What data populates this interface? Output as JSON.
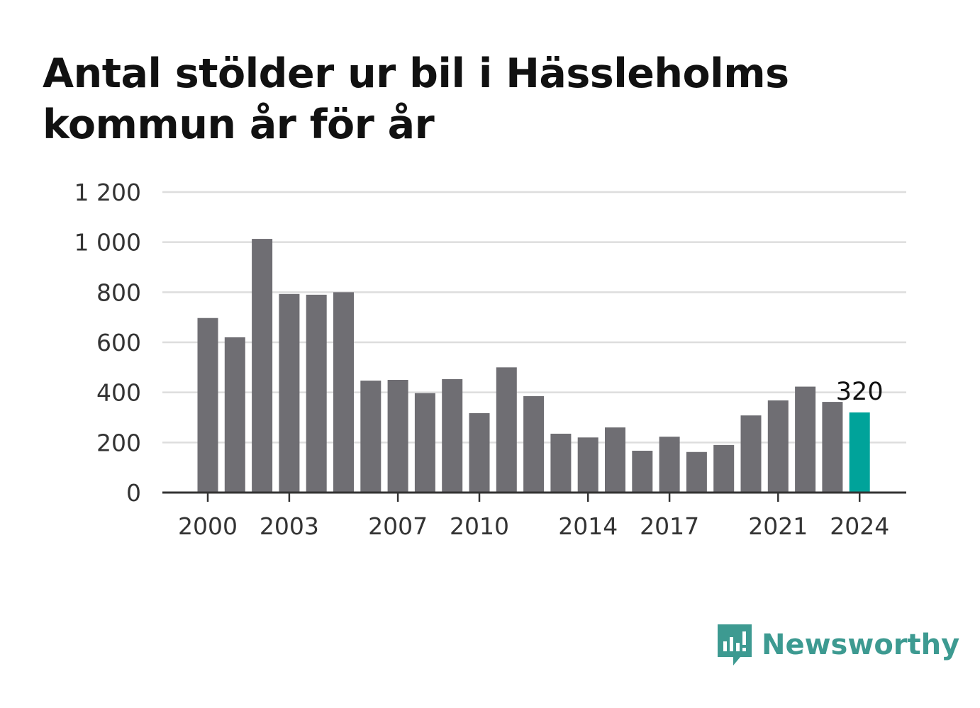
{
  "chart_data": {
    "type": "bar",
    "title": "Antal stölder ur bil i Hässleholms kommun år för år",
    "categories": [
      2000,
      2001,
      2002,
      2003,
      2004,
      2005,
      2006,
      2007,
      2008,
      2009,
      2010,
      2011,
      2012,
      2013,
      2014,
      2015,
      2016,
      2017,
      2018,
      2019,
      2020,
      2021,
      2022,
      2023,
      2024
    ],
    "values": [
      697,
      620,
      1013,
      793,
      790,
      800,
      447,
      450,
      397,
      453,
      317,
      500,
      385,
      235,
      220,
      260,
      167,
      223,
      162,
      190,
      308,
      368,
      423,
      362,
      320
    ],
    "ylim": [
      0,
      1200
    ],
    "yticks": [
      0,
      200,
      400,
      600,
      800,
      1000,
      1200
    ],
    "ytick_labels": [
      "0",
      "200",
      "400",
      "600",
      "800",
      "1 000",
      "1 200"
    ],
    "xticks": [
      2000,
      2003,
      2007,
      2010,
      2014,
      2017,
      2021,
      2024
    ],
    "highlight_category": 2024,
    "highlight_label": "320",
    "grid": true,
    "colors": {
      "bar": "#6f6e73",
      "highlight": "#00a39a",
      "grid": "#dddddd",
      "axis": "#333333"
    }
  },
  "brand": {
    "name": "Newsworthy",
    "icon": "newsworthy-logo-icon",
    "color": "#3d9a91"
  }
}
